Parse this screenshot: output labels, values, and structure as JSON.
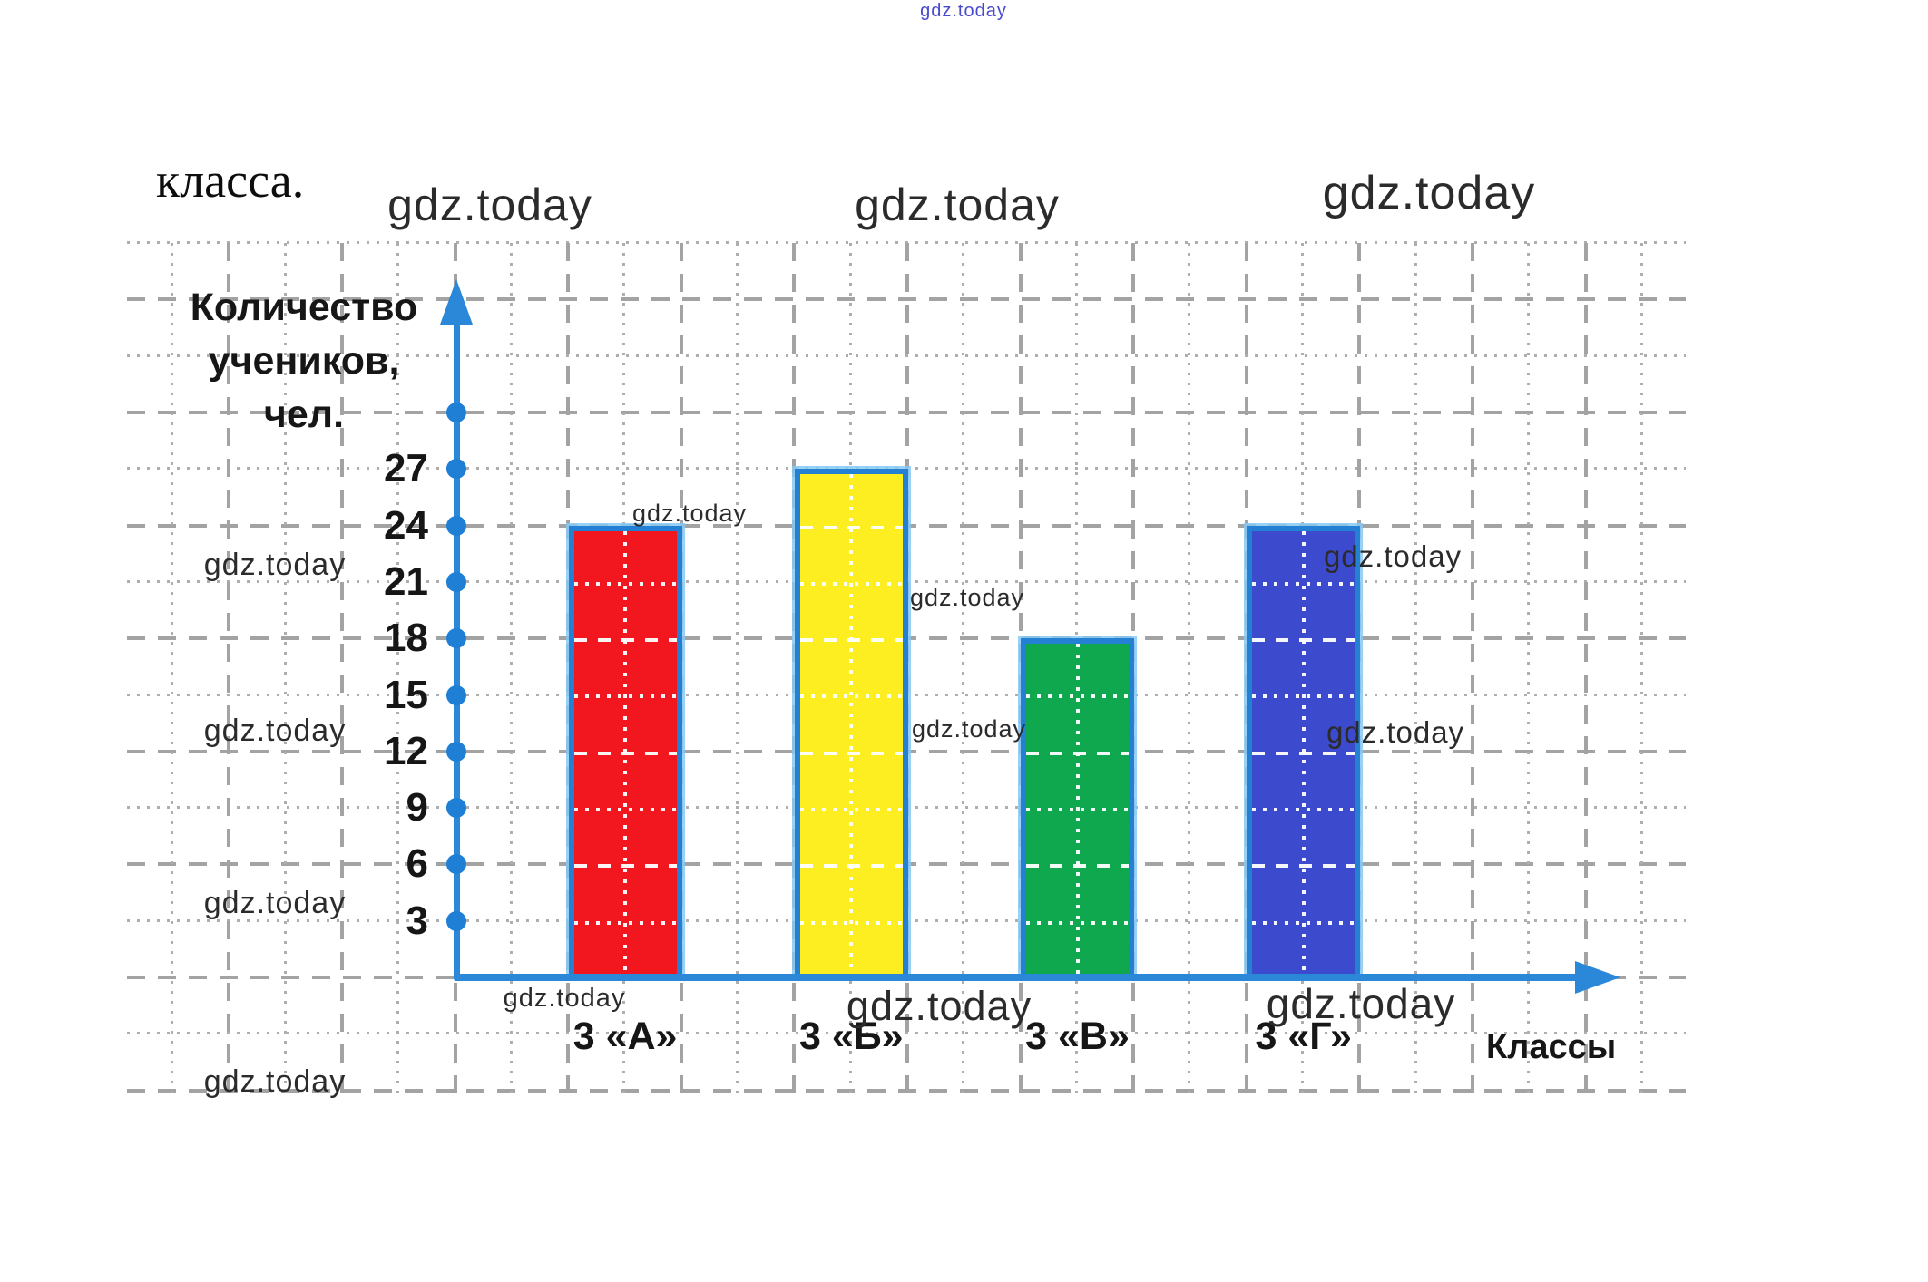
{
  "page": {
    "heading": "класса."
  },
  "watermark": {
    "text": "gdz.today",
    "link_color": "#4a4ad0"
  },
  "chart_data": {
    "type": "bar",
    "title": "",
    "categories": [
      "3 «А»",
      "3 «Б»",
      "3 «В»",
      "3 «Г»"
    ],
    "values": [
      24,
      27,
      18,
      24
    ],
    "bar_colors": [
      "#f2161f",
      "#fcee21",
      "#0fa84e",
      "#3c4bce"
    ],
    "bar_border_color": "#2380d2",
    "axis_color": "#2b87d8",
    "grid_color": "#a8a8a8",
    "ylabel": "Количество учеников, чел.",
    "ylabel_lines": [
      "Количество",
      "учеников,",
      "чел."
    ],
    "xlabel": "Классы",
    "yticks": [
      3,
      6,
      9,
      12,
      15,
      18,
      21,
      24,
      27
    ],
    "ylim": [
      0,
      30
    ],
    "ytick_step": 3,
    "grid": true,
    "legend": false
  }
}
